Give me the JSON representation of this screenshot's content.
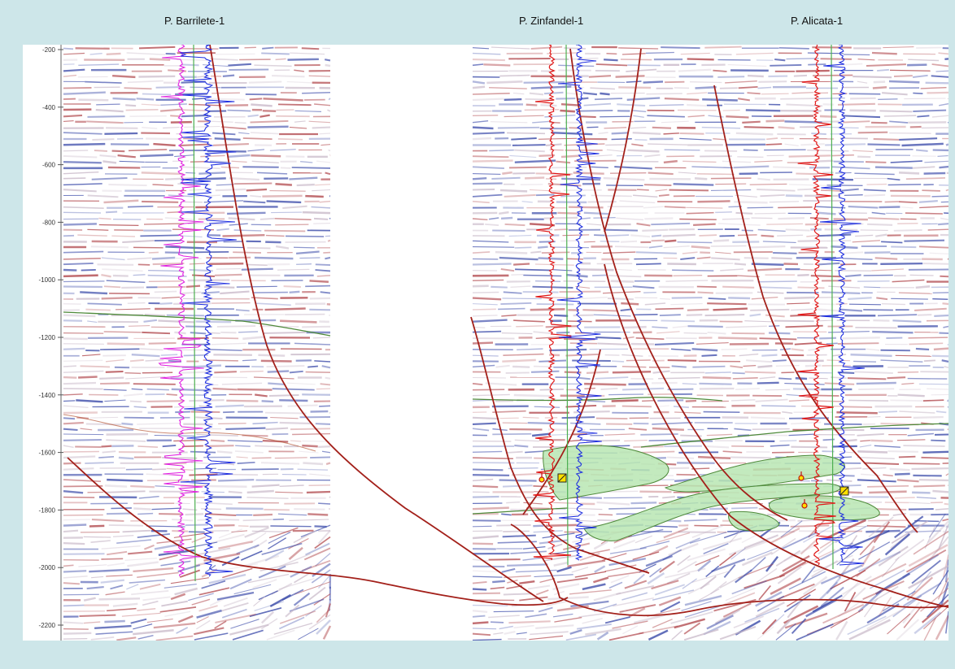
{
  "well_labels": [
    "P. Barrilete-1",
    "P. Zinfandel-1",
    "P. Alicata-1"
  ],
  "depth_axis": {
    "ticks": [
      "-200",
      "-400",
      "-600",
      "-800",
      "-1000",
      "-1200",
      "-1400",
      "-1600",
      "-1800",
      "-2000",
      "-2200"
    ]
  },
  "colors": {
    "background": "#cde6e9",
    "fault_lines": "#a3201a",
    "horizon_green": "#4e8a3a",
    "reservoir_fill": "#b9e6b3",
    "log_magenta": "#e020e0",
    "log_blue": "#1f2fe0",
    "log_red": "#e01818",
    "well_track_green": "#4caf50",
    "marker_yellow": "#ffe000"
  },
  "icons": {
    "well_marker": "square-marker-icon",
    "pin": "location-pin-icon"
  }
}
